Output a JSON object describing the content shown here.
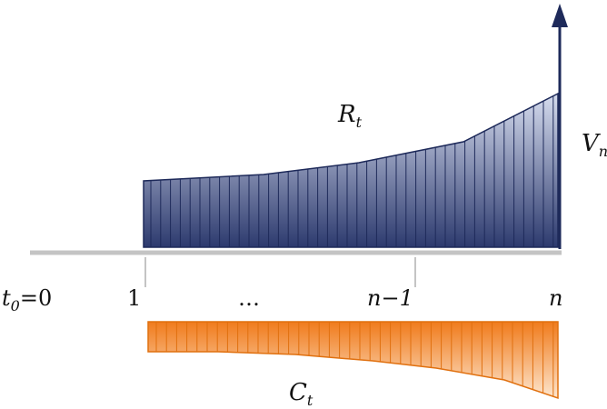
{
  "labels": {
    "t0_main": "t",
    "t0_sub": "0",
    "t0_rest": "=0",
    "one": "1",
    "ellipsis": "…",
    "n_minus_1": "n−1",
    "n": "n",
    "R_main": "R",
    "R_sub": "t",
    "V_main": "V",
    "V_sub": "n",
    "C_main": "C",
    "C_sub": "t"
  },
  "colors": {
    "revenue_top": "#d6dcee",
    "revenue_bottom": "#2d3a6e",
    "revenue_stroke": "#1e2a5a",
    "cost_top": "#f07b1c",
    "cost_bottom": "#fde6cf",
    "cost_stroke": "#e0700f",
    "axis": "#c4c4c4",
    "arrow": "#1e2a5a"
  }
}
